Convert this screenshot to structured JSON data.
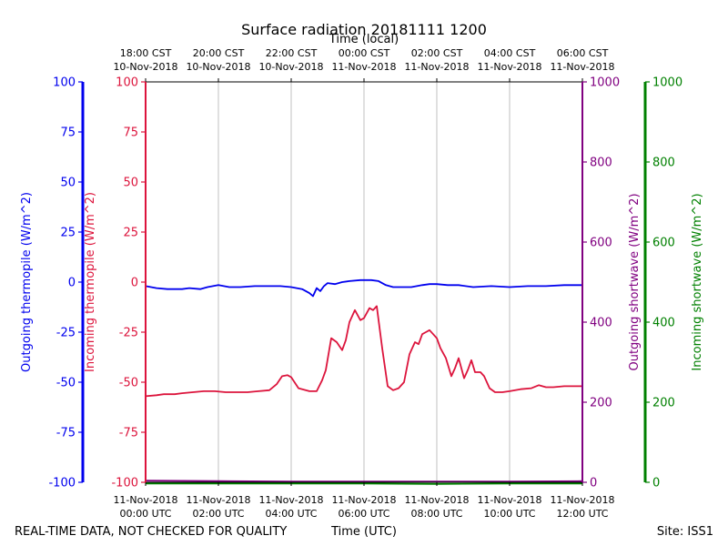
{
  "chart_data": {
    "type": "line",
    "title": "Surface radiation 20181111 1200",
    "top_xlabel": "Time (local)",
    "xlabel": "Time (UTC)",
    "footer_left": "REAL-TIME DATA, NOT CHECKED FOR QUALITY",
    "footer_right": "Site: ISS1",
    "grid": "vertical",
    "x_range_hours": [
      0,
      12
    ],
    "top_ticks": [
      {
        "h": 0,
        "line1": "18:00 CST",
        "line2": "10-Nov-2018"
      },
      {
        "h": 2,
        "line1": "20:00 CST",
        "line2": "10-Nov-2018"
      },
      {
        "h": 4,
        "line1": "22:00 CST",
        "line2": "10-Nov-2018"
      },
      {
        "h": 6,
        "line1": "00:00 CST",
        "line2": "11-Nov-2018"
      },
      {
        "h": 8,
        "line1": "02:00 CST",
        "line2": "11-Nov-2018"
      },
      {
        "h": 10,
        "line1": "04:00 CST",
        "line2": "11-Nov-2018"
      },
      {
        "h": 12,
        "line1": "06:00 CST",
        "line2": "11-Nov-2018"
      }
    ],
    "bottom_ticks": [
      {
        "h": 0,
        "line1": "11-Nov-2018",
        "line2": "00:00 UTC"
      },
      {
        "h": 2,
        "line1": "11-Nov-2018",
        "line2": "02:00 UTC"
      },
      {
        "h": 4,
        "line1": "11-Nov-2018",
        "line2": "04:00 UTC"
      },
      {
        "h": 6,
        "line1": "11-Nov-2018",
        "line2": "06:00 UTC"
      },
      {
        "h": 8,
        "line1": "11-Nov-2018",
        "line2": "08:00 UTC"
      },
      {
        "h": 10,
        "line1": "11-Nov-2018",
        "line2": "10:00 UTC"
      },
      {
        "h": 12,
        "line1": "11-Nov-2018",
        "line2": "12:00 UTC"
      }
    ],
    "axes": {
      "outgoing_thermopile": {
        "label": "Outgoing thermopile (W/m^2)",
        "color": "#0000ee",
        "range": [
          -100,
          100
        ],
        "ticks": [
          -100,
          -75,
          -50,
          -25,
          0,
          25,
          50,
          75,
          100
        ]
      },
      "incoming_thermopile": {
        "label": "Incoming thermopile (W/m^2)",
        "color": "#dc143c",
        "range": [
          -100,
          100
        ],
        "ticks": [
          -100,
          -75,
          -50,
          -25,
          0,
          25,
          50,
          75,
          100
        ]
      },
      "outgoing_shortwave": {
        "label": "Outgoing shortwave (W/m^2)",
        "color": "#800080",
        "range": [
          0,
          1000
        ],
        "ticks": [
          0,
          200,
          400,
          600,
          800,
          1000
        ]
      },
      "incoming_shortwave": {
        "label": "Incoming shortwave (W/m^2)",
        "color": "#008000",
        "range": [
          0,
          1000
        ],
        "ticks": [
          0,
          200,
          400,
          600,
          800,
          1000
        ]
      }
    },
    "series": [
      {
        "axis": "outgoing_thermopile",
        "color": "#0000ee",
        "x": [
          0,
          0.3,
          0.6,
          1.0,
          1.2,
          1.5,
          1.7,
          2.0,
          2.3,
          2.6,
          3.0,
          3.5,
          3.7,
          4.0,
          4.3,
          4.5,
          4.6,
          4.7,
          4.8,
          4.9,
          5.0,
          5.2,
          5.4,
          5.6,
          5.9,
          6.2,
          6.4,
          6.6,
          6.8,
          7.0,
          7.3,
          7.6,
          7.8,
          8.0,
          8.3,
          8.6,
          9.0,
          9.5,
          10.0,
          10.5,
          11.0,
          11.5,
          12.0
        ],
        "y": [
          -2,
          -3,
          -3.5,
          -3.5,
          -3,
          -3.5,
          -2.5,
          -1.5,
          -2.5,
          -2.5,
          -2,
          -2,
          -2,
          -2.5,
          -3.5,
          -5.5,
          -7,
          -3,
          -4.5,
          -2,
          -0.5,
          -1,
          0,
          0.5,
          1,
          1,
          0.5,
          -1.5,
          -2.5,
          -2.5,
          -2.5,
          -1.5,
          -1,
          -1,
          -1.5,
          -1.5,
          -2.5,
          -2,
          -2.5,
          -2,
          -2,
          -1.5,
          -1.5
        ]
      },
      {
        "axis": "incoming_thermopile",
        "color": "#dc143c",
        "x": [
          0,
          0.3,
          0.5,
          0.8,
          1.0,
          1.3,
          1.6,
          1.9,
          2.2,
          2.5,
          2.8,
          3.1,
          3.4,
          3.6,
          3.75,
          3.9,
          4.0,
          4.2,
          4.5,
          4.7,
          4.85,
          4.95,
          5.1,
          5.25,
          5.4,
          5.5,
          5.6,
          5.75,
          5.9,
          6.0,
          6.15,
          6.25,
          6.35,
          6.5,
          6.65,
          6.8,
          6.95,
          7.1,
          7.25,
          7.4,
          7.5,
          7.6,
          7.7,
          7.8,
          7.9,
          8.0,
          8.1,
          8.25,
          8.4,
          8.5,
          8.6,
          8.75,
          8.85,
          8.95,
          9.05,
          9.2,
          9.3,
          9.45,
          9.6,
          9.8,
          10.0,
          10.3,
          10.6,
          10.8,
          11.0,
          11.2,
          11.5,
          12.0
        ],
        "y": [
          -57,
          -56.5,
          -56,
          -56,
          -55.5,
          -55,
          -54.5,
          -54.5,
          -55,
          -55,
          -55,
          -54.5,
          -54,
          -51,
          -47,
          -46.5,
          -47.5,
          -53,
          -54.5,
          -54.5,
          -49,
          -44,
          -28,
          -30,
          -34,
          -29,
          -20,
          -14,
          -19,
          -18,
          -13,
          -14,
          -12,
          -33,
          -52,
          -54,
          -53,
          -50,
          -36,
          -30,
          -31,
          -26,
          -25,
          -24,
          -26,
          -28,
          -33,
          -38,
          -47,
          -43,
          -38,
          -48,
          -44,
          -39,
          -45,
          -45,
          -47,
          -53,
          -55,
          -55,
          -54.5,
          -53.5,
          -53,
          -51.5,
          -52.5,
          -52.5,
          -52,
          -52
        ]
      },
      {
        "axis": "outgoing_shortwave",
        "color": "#800080",
        "x": [
          0,
          2,
          4,
          6,
          8,
          10,
          12
        ],
        "y": [
          4,
          3,
          2,
          2,
          2,
          2,
          3
        ]
      },
      {
        "axis": "incoming_shortwave",
        "color": "#008000",
        "x": [
          0,
          2,
          4,
          6,
          8,
          10,
          12
        ],
        "y": [
          -3,
          -3,
          -3,
          -3,
          -4,
          -3,
          -3
        ]
      }
    ]
  }
}
